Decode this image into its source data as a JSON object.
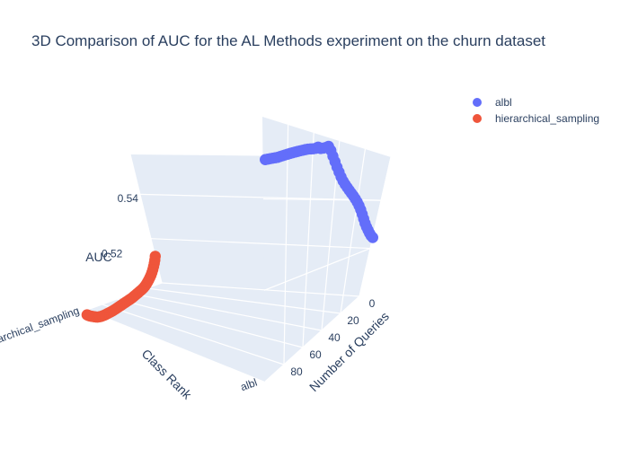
{
  "colors": {
    "background": "#ffffff",
    "scene_pane": "#e5ecf6",
    "grid": "#ffffff",
    "text": "#2a3f5f"
  },
  "chart_data": {
    "type": "scatter",
    "projection": "3d",
    "title": "3D Comparison of AUC for the AL Methods experiment on the churn dataset",
    "axes": {
      "x": {
        "label": "Number of Queries",
        "ticks": [
          0,
          20,
          40,
          60,
          80
        ],
        "range": [
          0,
          100
        ]
      },
      "y": {
        "label": "Class Rank",
        "categories": [
          "albl",
          "hierarchical_sampling"
        ],
        "tick_labels": [
          "albl",
          "hierarchical_sampling"
        ]
      },
      "z": {
        "label": "AUC",
        "ticks": [
          0.52,
          0.54
        ],
        "range": [
          0.5,
          0.558
        ]
      }
    },
    "grid": true,
    "legend": {
      "position": "top-right"
    },
    "series": [
      {
        "name": "albl",
        "category": "albl",
        "color": "#636efa",
        "x": [
          0,
          2,
          4,
          6,
          8,
          10,
          12,
          14,
          16,
          18,
          20,
          22,
          24,
          26,
          28,
          30,
          32,
          34,
          36,
          38,
          40,
          42,
          44,
          46,
          48,
          50,
          52,
          54,
          56,
          58,
          60,
          62,
          64,
          66,
          68,
          70,
          72,
          74,
          76,
          78,
          80,
          82,
          84,
          86,
          88,
          90,
          92,
          94,
          96,
          98
        ],
        "z": [
          0.5245,
          0.5255,
          0.5268,
          0.5282,
          0.5296,
          0.5312,
          0.533,
          0.5348,
          0.5365,
          0.538,
          0.5393,
          0.5404,
          0.5414,
          0.5423,
          0.5432,
          0.5441,
          0.545,
          0.546,
          0.5472,
          0.5486,
          0.55,
          0.5515,
          0.553,
          0.5545,
          0.5555,
          0.555,
          0.5546,
          0.5543,
          0.5545,
          0.554,
          0.5537,
          0.5535,
          0.5533,
          0.553,
          0.5527,
          0.5524,
          0.5521,
          0.5518,
          0.5515,
          0.5512,
          0.5509,
          0.5506,
          0.5503,
          0.55,
          0.5497,
          0.5495,
          0.5493,
          0.5491,
          0.5489,
          0.5487
        ]
      },
      {
        "name": "hierarchical_sampling",
        "category": "hierarchical_sampling",
        "color": "#ef553b",
        "x": [
          0,
          2,
          4,
          6,
          8,
          10,
          12,
          14,
          16,
          18,
          20,
          22,
          24,
          26,
          28,
          30,
          32,
          34,
          36,
          38,
          40,
          42,
          44,
          46,
          48,
          50,
          52,
          54,
          56,
          58,
          60,
          62,
          64,
          66,
          68,
          70,
          72,
          74,
          76,
          78,
          80,
          82,
          84,
          86,
          88,
          90,
          92,
          94,
          96,
          98
        ],
        "z": [
          0.512,
          0.5105,
          0.5092,
          0.508,
          0.5068,
          0.5058,
          0.5048,
          0.504,
          0.5032,
          0.5025,
          0.5018,
          0.5012,
          0.5007,
          0.5003,
          0.5,
          0.4997,
          0.4994,
          0.4991,
          0.4988,
          0.4985,
          0.4982,
          0.498,
          0.4978,
          0.4976,
          0.4974,
          0.4972,
          0.497,
          0.4968,
          0.4966,
          0.4964,
          0.4962,
          0.496,
          0.4958,
          0.4957,
          0.4956,
          0.4955,
          0.4954,
          0.4953,
          0.4953,
          0.4953,
          0.4954,
          0.4955,
          0.4957,
          0.496,
          0.4963,
          0.4966,
          0.4969,
          0.4972,
          0.4976,
          0.498
        ]
      }
    ]
  }
}
